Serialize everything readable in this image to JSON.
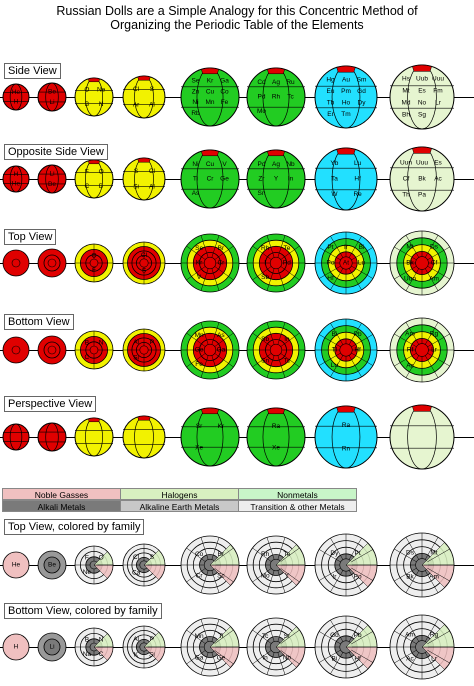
{
  "title_line1": "Russian Dolls are a Simple Analogy for this Concentric Method of",
  "title_line2": "Organizing the Periodic Table of the Elements",
  "views": [
    {
      "label": "Side View"
    },
    {
      "label": "Opposite Side View"
    },
    {
      "label": "Top View"
    },
    {
      "label": "Bottom View"
    },
    {
      "label": "Perspective View"
    },
    {
      "label": "Top View, colored by family"
    },
    {
      "label": "Bottom View, colored by family"
    }
  ],
  "colors": {
    "red": "#e00000",
    "yellow": "#f2f200",
    "green": "#22cc22",
    "cyan": "#22e0ff",
    "pale": "#e6f5d0",
    "noble": "#f0c0c0",
    "halogen": "#d8f0c0",
    "nonmetal": "#c8f5c8",
    "alkali": "#7a7a7a",
    "alkaline": "#c8c8c8",
    "transition": "#eeeeee"
  },
  "legend": {
    "noble_gasses": "Noble Gasses",
    "halogens": "Halogens",
    "nonmetals": "Nonmetals",
    "alkali_metals": "Alkali Metals",
    "alkaline_earth_metals": "Alkaline Earth Metals",
    "transition_other_metals": "Transition & other Metals"
  },
  "side_view_labels": {
    "b1": [
      "He",
      "H"
    ],
    "b2": [
      "Be",
      "Li"
    ],
    "b3": [
      "O",
      "Ne",
      "B",
      "N"
    ],
    "b4": [
      "Cl",
      "S",
      "Ar",
      "Al"
    ],
    "b5": [
      "Se",
      "Kr",
      "Ga",
      "Zn",
      "Cu",
      "Co",
      "Ni",
      "Mn",
      "Fe",
      "Rb"
    ],
    "b6": [
      "Cd",
      "Ag",
      "Ru",
      "Pd",
      "Rh",
      "Tc",
      "Mo"
    ],
    "b7": [
      "Hg",
      "Au",
      "Sm",
      "Eu",
      "Pm",
      "Gd",
      "Tb",
      "Ho",
      "Dy",
      "Er",
      "Tm"
    ],
    "b8": [
      "Hs",
      "Uub",
      "Uuu",
      "Mt",
      "Es",
      "Fm",
      "Md",
      "No",
      "Lr",
      "Bh",
      "Sg"
    ]
  },
  "opposite_labels": {
    "b1": [
      "H",
      "He"
    ],
    "b2": [
      "Li",
      "Be"
    ],
    "b3": [
      "F",
      "O",
      "C",
      "B"
    ],
    "b4": [
      "S",
      "Cl",
      "Si",
      "Al"
    ],
    "b5": [
      "Ni",
      "Cu",
      "V",
      "Ti",
      "Cr",
      "Ge",
      "As"
    ],
    "b6": [
      "Pd",
      "Ag",
      "Nb",
      "Zr",
      "Y",
      "In",
      "Sn"
    ],
    "b7": [
      "Yb",
      "Lu",
      "Ta",
      "Hf",
      "W",
      "Re"
    ],
    "b8": [
      "Uun",
      "Uuu",
      "Es",
      "Cf",
      "Bk",
      "Ac",
      "Th",
      "Pa"
    ]
  },
  "top_labels": {
    "b3": [
      "O",
      "F"
    ],
    "b4": [
      "Cl",
      "S"
    ],
    "b5": [
      "Se",
      "Br",
      "Kr",
      "Cr",
      "V"
    ],
    "b6": [
      "Rh",
      "Te",
      "I",
      "Pd",
      "Sb"
    ],
    "b7": [
      "Pt",
      "Ir",
      "Bi",
      "Po",
      "At",
      "Lu",
      "Hf"
    ],
    "b8": [
      "Mt",
      "Ds",
      "Bk",
      "Cf",
      "Uun",
      "Am"
    ]
  },
  "bottom_labels": {
    "b3": [
      "B",
      "N",
      "C"
    ],
    "b4": [
      "Al",
      "P",
      "Si"
    ],
    "b5": [
      "Mn",
      "As",
      "Ge",
      "Ga",
      "Fe"
    ],
    "b6": [
      "Sb",
      "In",
      "Sn",
      "Tc"
    ],
    "b7": [
      "Bi",
      "Pb",
      "Tl",
      "Hf",
      "Lu"
    ],
    "b8": [
      "Am",
      "Rg",
      "Rf",
      "Lr",
      "Ac"
    ]
  },
  "perspective_labels": {
    "b5": [
      "Sr",
      "Kr",
      "Xe"
    ],
    "b6": [
      "Ra",
      "Xe"
    ],
    "b7": [
      "Ra",
      "Rn"
    ],
    "b8": []
  },
  "family_top_labels": {
    "b1": [
      "He"
    ],
    "b2": [
      "Be"
    ],
    "b3": [
      "F",
      "O",
      "Ne"
    ],
    "b4": [
      "Cl",
      "S",
      "Ca"
    ],
    "b5": [
      "Co",
      "Br",
      "Cr",
      "Sc"
    ],
    "b6": [
      "Rh",
      "Te",
      "Mo",
      "Y"
    ],
    "b7": [
      "Dy",
      "Pt",
      "Ir",
      "Po"
    ],
    "b8": [
      "Ds",
      "Mt",
      "Bk",
      "Am"
    ]
  },
  "family_bottom_labels": {
    "b1": [
      "H"
    ],
    "b2": [
      "Li"
    ],
    "b3": [
      "B",
      "N",
      "Na",
      "C"
    ],
    "b4": [
      "Al",
      "P",
      "K",
      "Si"
    ],
    "b5": [
      "Mn",
      "Ti",
      "Ga",
      "Ge"
    ],
    "b6": [
      "Tc",
      "Sr",
      "In",
      "Nb"
    ],
    "b7": [
      "Gd",
      "Pb",
      "Bi",
      "Hf"
    ],
    "b8": [
      "Am",
      "Rg",
      "Ac",
      "Lr"
    ]
  }
}
